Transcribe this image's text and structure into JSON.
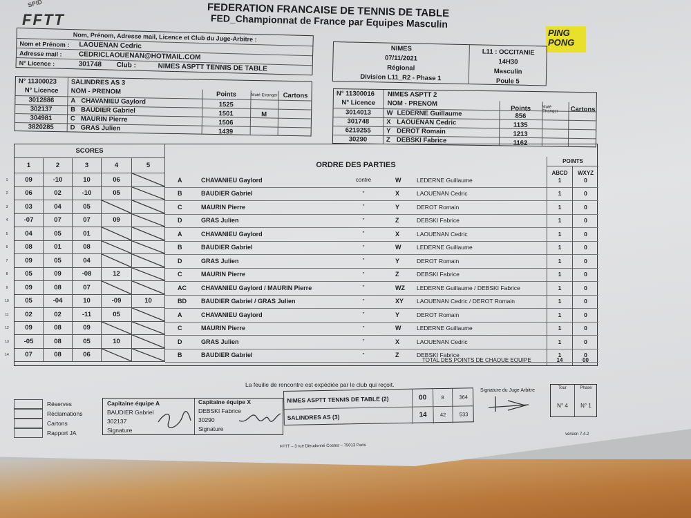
{
  "header": {
    "logo": "FFTT",
    "logo_arc": "SPID",
    "title": "FEDERATION FRANCAISE DE TENNIS DE TABLE",
    "subtitle": "FED_Championnat de France par Equipes Masculin",
    "ping_logo": "PING PONG"
  },
  "referee": {
    "heading": "Nom, Prénom, Adresse mail, Licence et Club du Juge-Arbitre :",
    "name_label": "Nom et Prénom :",
    "name": "LAOUENAN  Cedric",
    "email_label": "Adresse mail  :",
    "email": "CEDRICLAOUENAN@HOTMAIL.COM",
    "licence_label": "N° Licence    :",
    "licence": "301748",
    "club_label": "Club :",
    "club": "NIMES ASPTT TENNIS DE TABLE"
  },
  "match": {
    "city": "NIMES",
    "date": "07/11/2021",
    "level": "Régional",
    "division": "Division  L11_R2 - Phase 1",
    "league": "L11 : OCCITANIE",
    "time": "14H30",
    "gender": "Masculin",
    "pool": "Poule 5"
  },
  "team_a": {
    "number": "N° 11300023",
    "name": "SALINDRES AS  3",
    "col_licence": "N° Licence",
    "col_name": "NOM - PRENOM",
    "col_points": "Points",
    "col_mute": "Muté Etranger",
    "col_cards": "Cartons",
    "players": [
      {
        "licence": "3012886",
        "letter": "A",
        "name": "CHAVANIEU  Gaylord",
        "points": "1525",
        "mute": ""
      },
      {
        "licence": "302137",
        "letter": "B",
        "name": "BAUDIER  Gabriel",
        "points": "1501",
        "mute": "M"
      },
      {
        "licence": "304981",
        "letter": "C",
        "name": "MAURIN  Pierre",
        "points": "1506",
        "mute": ""
      },
      {
        "licence": "3820285",
        "letter": "D",
        "name": "GRAS  Julien",
        "points": "1439",
        "mute": ""
      }
    ]
  },
  "team_x": {
    "number": "N° 11300016",
    "name": "NIMES ASPTT  2",
    "col_licence": "N° Licence",
    "col_name": "NOM - PRENOM",
    "col_points": "Points",
    "col_mute": "Muté Etranger",
    "col_cards": "Cartons",
    "players": [
      {
        "licence": "3014013",
        "letter": "W",
        "name": "LEDERNE  Guillaume",
        "points": "856"
      },
      {
        "licence": "301748",
        "letter": "X",
        "name": "LAOUENAN  Cedric",
        "points": "1135"
      },
      {
        "licence": "6219255",
        "letter": "Y",
        "name": "DEROT  Romain",
        "points": "1213"
      },
      {
        "licence": "30290",
        "letter": "Z",
        "name": "DEBSKI  Fabrice",
        "points": "1162"
      }
    ]
  },
  "games": {
    "scores_heading": "SCORES",
    "set_labels": [
      "1",
      "2",
      "3",
      "4",
      "5"
    ],
    "order_heading": "ORDRE DES PARTIES",
    "points_heading": "POINTS",
    "col_abcd": "ABCD",
    "col_wxyz": "WXYZ",
    "total_label": "TOTAL DES POINTS DE CHAQUE EQUIPE",
    "total_abcd": "14",
    "total_wxyz": "00",
    "rows": [
      {
        "n": "1",
        "sets": [
          "09",
          "-10",
          "10",
          "06",
          ""
        ],
        "a": "A",
        "a_name": "CHAVANIEU Gaylord",
        "vs": "contre",
        "x": "W",
        "x_name": "LEDERNE Guillaume",
        "pa": "1",
        "px": "0"
      },
      {
        "n": "2",
        "sets": [
          "06",
          "02",
          "-10",
          "05",
          ""
        ],
        "a": "B",
        "a_name": "BAUDIER Gabriel",
        "vs": "\"",
        "x": "X",
        "x_name": "LAOUENAN Cedric",
        "pa": "1",
        "px": "0"
      },
      {
        "n": "3",
        "sets": [
          "03",
          "04",
          "05",
          "",
          ""
        ],
        "a": "C",
        "a_name": "MAURIN Pierre",
        "vs": "\"",
        "x": "Y",
        "x_name": "DEROT Romain",
        "pa": "1",
        "px": "0"
      },
      {
        "n": "4",
        "sets": [
          "-07",
          "07",
          "07",
          "09",
          ""
        ],
        "a": "D",
        "a_name": "GRAS Julien",
        "vs": "\"",
        "x": "Z",
        "x_name": "DEBSKI Fabrice",
        "pa": "1",
        "px": "0"
      },
      {
        "n": "5",
        "sets": [
          "04",
          "05",
          "01",
          "",
          ""
        ],
        "a": "A",
        "a_name": "CHAVANIEU Gaylord",
        "vs": "\"",
        "x": "X",
        "x_name": "LAOUENAN Cedric",
        "pa": "1",
        "px": "0"
      },
      {
        "n": "6",
        "sets": [
          "08",
          "01",
          "08",
          "",
          ""
        ],
        "a": "B",
        "a_name": "BAUDIER Gabriel",
        "vs": "\"",
        "x": "W",
        "x_name": "LEDERNE Guillaume",
        "pa": "1",
        "px": "0"
      },
      {
        "n": "7",
        "sets": [
          "09",
          "05",
          "04",
          "",
          ""
        ],
        "a": "D",
        "a_name": "GRAS Julien",
        "vs": "\"",
        "x": "Y",
        "x_name": "DEROT Romain",
        "pa": "1",
        "px": "0"
      },
      {
        "n": "8",
        "sets": [
          "05",
          "09",
          "-08",
          "12",
          ""
        ],
        "a": "C",
        "a_name": "MAURIN Pierre",
        "vs": "\"",
        "x": "Z",
        "x_name": "DEBSKI Fabrice",
        "pa": "1",
        "px": "0"
      },
      {
        "n": "9",
        "sets": [
          "09",
          "08",
          "07",
          "",
          ""
        ],
        "a": "AC",
        "a_name": "CHAVANIEU Gaylord / MAURIN Pierre",
        "vs": "\"",
        "x": "WZ",
        "x_name": "LEDERNE Guillaume / DEBSKI Fabrice",
        "pa": "1",
        "px": "0"
      },
      {
        "n": "10",
        "sets": [
          "05",
          "-04",
          "10",
          "-09",
          "10"
        ],
        "a": "BD",
        "a_name": "BAUDIER Gabriel / GRAS Julien",
        "vs": "\"",
        "x": "XY",
        "x_name": "LAOUENAN Cedric / DEROT Romain",
        "pa": "1",
        "px": "0"
      },
      {
        "n": "11",
        "sets": [
          "02",
          "02",
          "-11",
          "05",
          ""
        ],
        "a": "A",
        "a_name": "CHAVANIEU Gaylord",
        "vs": "\"",
        "x": "Y",
        "x_name": "DEROT Romain",
        "pa": "1",
        "px": "0"
      },
      {
        "n": "12",
        "sets": [
          "09",
          "08",
          "09",
          "",
          ""
        ],
        "a": "C",
        "a_name": "MAURIN Pierre",
        "vs": "\"",
        "x": "W",
        "x_name": "LEDERNE Guillaume",
        "pa": "1",
        "px": "0"
      },
      {
        "n": "13",
        "sets": [
          "-05",
          "08",
          "05",
          "10",
          ""
        ],
        "a": "D",
        "a_name": "GRAS Julien",
        "vs": "\"",
        "x": "X",
        "x_name": "LAOUENAN Cedric",
        "pa": "1",
        "px": "0"
      },
      {
        "n": "14",
        "sets": [
          "07",
          "08",
          "06",
          "",
          ""
        ],
        "a": "B",
        "a_name": "BAUDIER Gabriel",
        "vs": "\"",
        "x": "Z",
        "x_name": "DEBSKI Fabrice",
        "pa": "1",
        "px": "0"
      }
    ]
  },
  "footer": {
    "note": "La feuille de rencontre est expédiée par le club qui reçoit.",
    "checkboxes": [
      "Réserves",
      "Réclamations",
      "Cartons",
      "Rapport JA"
    ],
    "captain_a": {
      "label": "Capitaine équipe A",
      "name": "BAUDIER Gabriel",
      "licence": "302137",
      "signature": "Signature"
    },
    "captain_x": {
      "label": "Capitaine équipe X",
      "name": "DEBSKI Fabrice",
      "licence": "30290",
      "signature": "Signature"
    },
    "results": [
      {
        "team": "NIMES ASPTT TENNIS DE TABLE  (2)",
        "points": "00",
        "sets": "8",
        "balls": "364"
      },
      {
        "team": "SALINDRES AS  (3)",
        "points": "14",
        "sets": "42",
        "balls": "533"
      }
    ],
    "referee_signature": "Signature du Juge Arbitre",
    "tour_label": "Tour",
    "tour": "N° 4",
    "phase_label": "Phase",
    "phase": "N° 1",
    "version": "version 7.4.2",
    "address": "FFTT – 3 rue Dieudonné Costes – 75013 Paris"
  }
}
